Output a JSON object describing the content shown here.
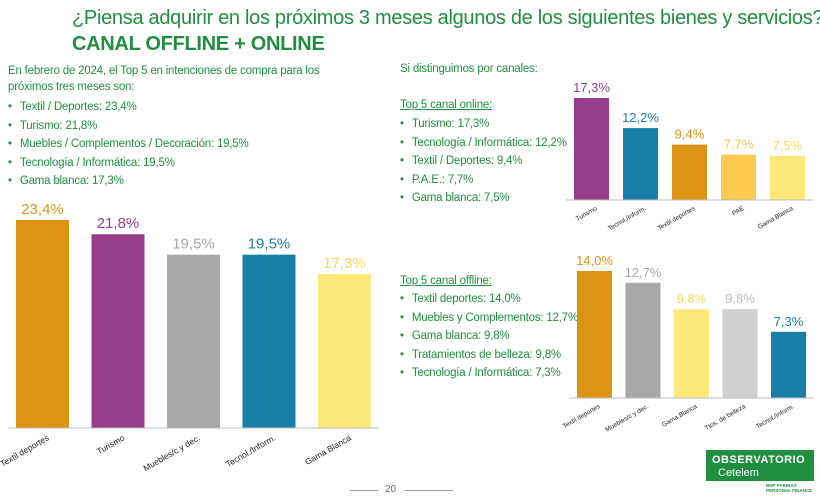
{
  "header": {
    "title": "¿Piensa adquirir en los próximos 3 meses algunos de los siguientes bienes y servicios?",
    "subtitle": "CANAL OFFLINE + ONLINE"
  },
  "left_panel": {
    "intro": "En febrero de 2024, el Top 5 en intenciones de compra para los próximos tres meses son:",
    "bullets": [
      "Textil / Deportes: 23,4%",
      "Turismo: 21,8%",
      "Muebles / Complementos / Decoración: 19,5%",
      "Tecnología / Informática: 19,5%",
      "Gama blanca: 17,3%"
    ]
  },
  "right_panel": {
    "intro": "Si distinguimos por canales:",
    "online_heading": "Top 5 canal online:",
    "online_bullets": [
      "Turismo: 17,3%",
      "Tecnología / Informática: 12,2%",
      "Textil / Deportes: 9,4%",
      "P.A.E.: 7,7%",
      "Gama blanca: 7,5%"
    ],
    "offline_heading": "Top 5 canal offline:",
    "offline_bullets": [
      "Textil deportes: 14,0%",
      "Muebles y Complementos: 12,7%",
      "Gama blanca: 9,8%",
      "Tratamientos de belleza: 9,8%",
      "Tecnología / Informática: 7,3%"
    ]
  },
  "chart_data": [
    {
      "type": "bar",
      "categories": [
        "Textil deportes",
        "Turismo",
        "Muebles/c y dec.",
        "Tecnol./Inform.",
        "Gama Blanca"
      ],
      "values": [
        23.4,
        21.8,
        19.5,
        19.5,
        17.3
      ],
      "labels": [
        "23,4%",
        "21,8%",
        "19,5%",
        "19,5%",
        "17,3%"
      ],
      "colors": [
        "#dc9214",
        "#963d8c",
        "#a8a8a8",
        "#1a7fa6",
        "#fde77a"
      ],
      "label_colors": [
        "#dc9214",
        "#963d8c",
        "#a8a8a8",
        "#1a7fa6",
        "#f5d95a"
      ],
      "ylim": [
        0,
        23.4
      ],
      "grid": false
    },
    {
      "type": "bar",
      "categories": [
        "Turismo",
        "Tecnol./Inform.",
        "Textil deportes",
        "PAE",
        "Gama Blanca"
      ],
      "values": [
        17.3,
        12.2,
        9.4,
        7.7,
        7.5
      ],
      "labels": [
        "17,3%",
        "12,2%",
        "9,4%",
        "7,7%",
        "7,5%"
      ],
      "colors": [
        "#963d8c",
        "#1a7fa6",
        "#dc9214",
        "#fbc94d",
        "#fde77a"
      ],
      "label_colors": [
        "#963d8c",
        "#1a7fa6",
        "#dc9214",
        "#f5c443",
        "#f5d95a"
      ],
      "ylim": [
        0,
        17.3
      ],
      "grid": false
    },
    {
      "type": "bar",
      "categories": [
        "Textil deportes",
        "Muebles/c y dec.",
        "Gama Blanca",
        "Ttos. de belleza",
        "Tecnol./Inform."
      ],
      "values": [
        14.0,
        12.7,
        9.8,
        9.8,
        7.3
      ],
      "labels": [
        "14,0%",
        "12,7%",
        "9,8%",
        "9,8%",
        "7,3%"
      ],
      "colors": [
        "#dc9214",
        "#a8a8a8",
        "#fde77a",
        "#cfcfcf",
        "#1a7fa6"
      ],
      "label_colors": [
        "#dc9214",
        "#a8a8a8",
        "#f5d95a",
        "#bdbdbd",
        "#1a7fa6"
      ],
      "ylim": [
        0,
        14.0
      ],
      "grid": false
    }
  ],
  "footer": {
    "page_number": "20",
    "logo_line1": "OBSERVATORIO",
    "logo_line2": "Cetelem",
    "logo_line3": "BNP PARIBAS\nPERSONAL FINANCE"
  }
}
